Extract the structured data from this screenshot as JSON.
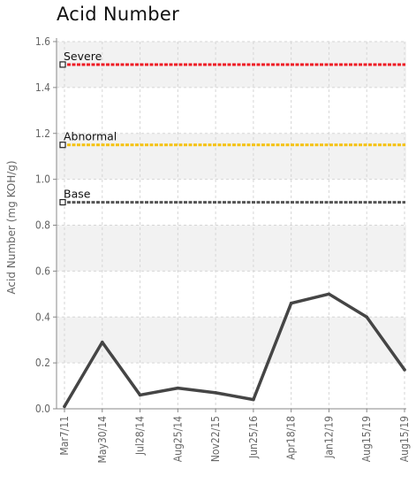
{
  "chart_data": {
    "type": "line",
    "title": "Acid Number",
    "xlabel": "",
    "ylabel": "Acid Number (mg KOH/g)",
    "ylim": [
      0.0,
      1.6
    ],
    "yticks": [
      "0.0",
      "0.2",
      "0.4",
      "0.6",
      "0.8",
      "1.0",
      "1.2",
      "1.4",
      "1.6"
    ],
    "categories": [
      "Mar7/11",
      "May30/14",
      "Jul28/14",
      "Aug25/14",
      "Nov22/15",
      "Jun25/16",
      "Apr18/18",
      "Jan12/19",
      "Aug15/19",
      "Aug15/19"
    ],
    "series": [
      {
        "values": [
          0.01,
          0.29,
          0.06,
          0.09,
          0.07,
          0.04,
          0.46,
          0.5,
          0.4,
          0.17
        ],
        "color": "#454545"
      }
    ],
    "reference_lines": [
      {
        "label": "Severe",
        "value": 1.5,
        "color": "#ee1c25"
      },
      {
        "label": "Abnormal",
        "value": 1.15,
        "color": "#f5c211"
      },
      {
        "label": "Base",
        "value": 0.9,
        "color": "#555555"
      }
    ],
    "grid": true,
    "band_color": "#f2f2f2",
    "legend": "none"
  }
}
